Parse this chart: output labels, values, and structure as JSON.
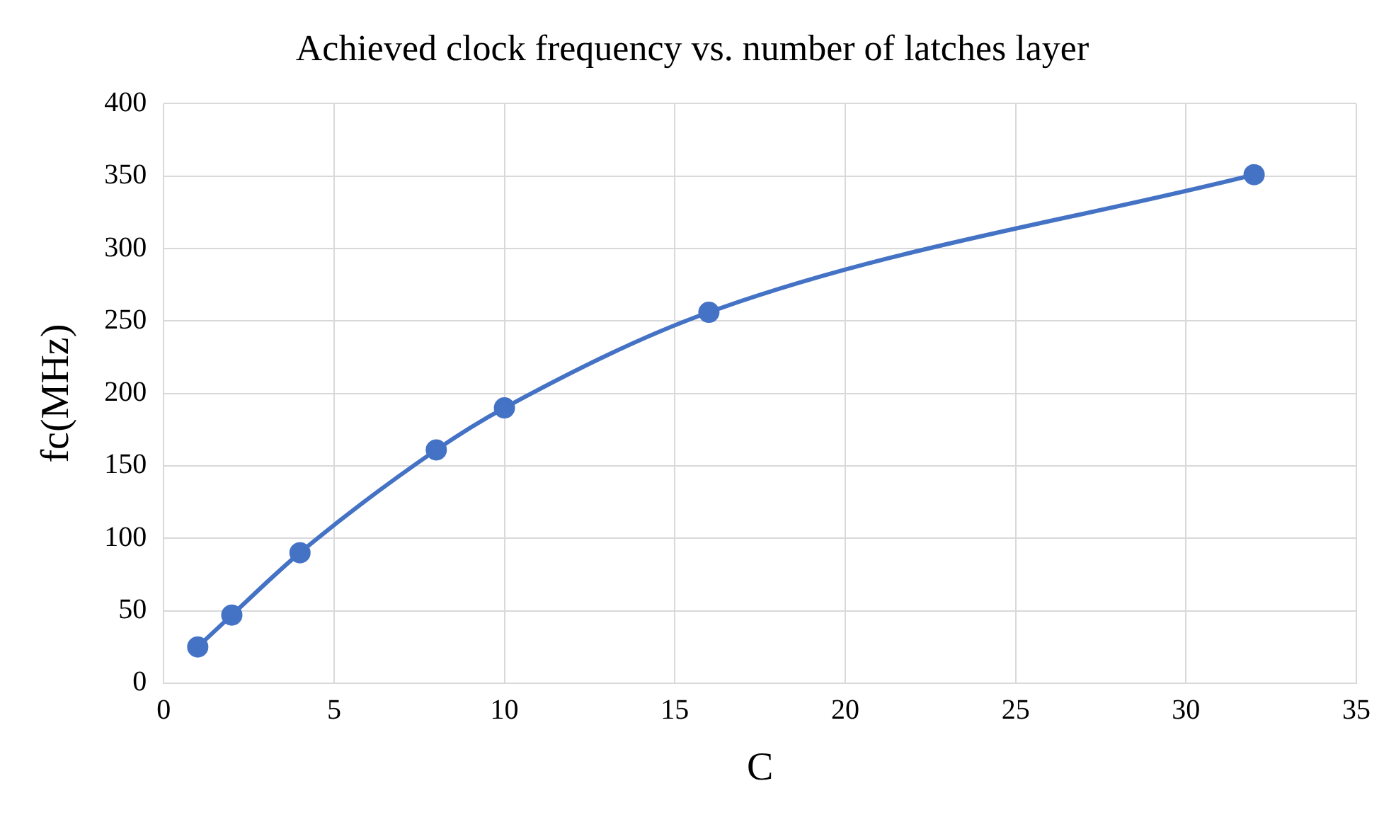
{
  "chart_data": {
    "type": "line",
    "title": "Achieved clock frequency vs. number of latches layer",
    "xlabel": "C",
    "ylabel": "fc(MHz)",
    "x": [
      1,
      2,
      4,
      8,
      10,
      16,
      32
    ],
    "series": [
      {
        "color": "#4472c4",
        "values": [
          25,
          47,
          90,
          161,
          190,
          256,
          351
        ]
      }
    ],
    "xlim": [
      0,
      35
    ],
    "xticks": [
      0,
      5,
      10,
      15,
      20,
      25,
      30,
      35
    ],
    "ylim": [
      0,
      400
    ],
    "yticks": [
      0,
      50,
      100,
      150,
      200,
      250,
      300,
      350,
      400
    ],
    "grid": true,
    "legend": false,
    "marker": "circle",
    "line_style": "solid"
  }
}
